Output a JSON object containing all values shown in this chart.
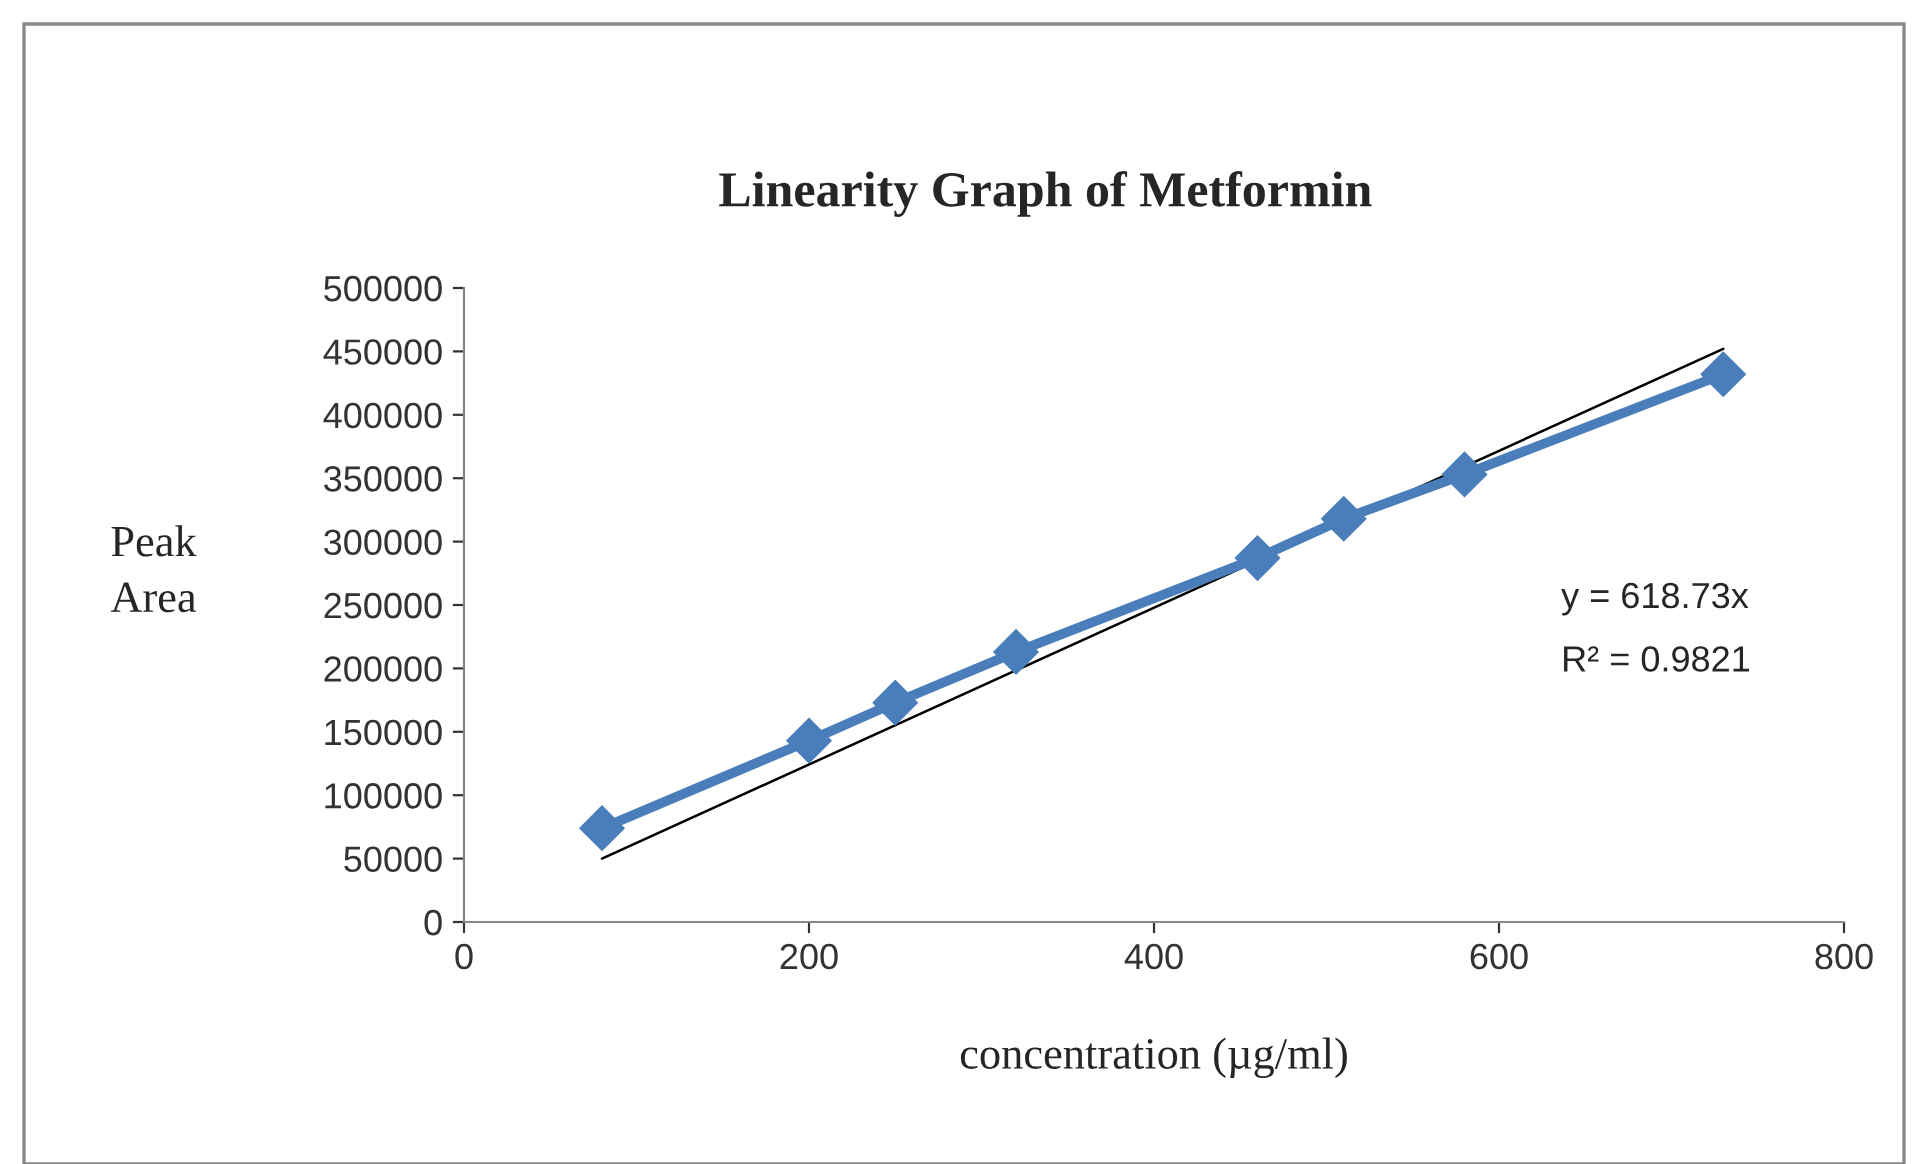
{
  "chart_data": {
    "type": "line",
    "title": "Linearity Graph of Metformin",
    "xlabel": "concentration (µg/ml)",
    "ylabel": "Peak\nArea",
    "annotations": [
      "y = 618.73x",
      "R² = 0.9821"
    ],
    "xlim": [
      0,
      800
    ],
    "xticks": [
      0,
      200,
      400,
      600,
      800
    ],
    "ylim": [
      0,
      500000
    ],
    "yticks": [
      0,
      50000,
      100000,
      150000,
      200000,
      250000,
      300000,
      350000,
      400000,
      450000,
      500000
    ],
    "grid": false,
    "legend": false,
    "series": [
      {
        "color": "#4a7ebb",
        "marker": "diamond",
        "line_style": "solid",
        "x": [
          80,
          200,
          250,
          320,
          460,
          510,
          580,
          730
        ],
        "values": [
          74000,
          143000,
          173000,
          213000,
          287000,
          318000,
          353000,
          432000
        ]
      },
      {
        "color": "#000000",
        "marker": "none",
        "line_style": "solid",
        "x": [
          80,
          730
        ],
        "values": [
          50000,
          452000
        ]
      }
    ]
  }
}
